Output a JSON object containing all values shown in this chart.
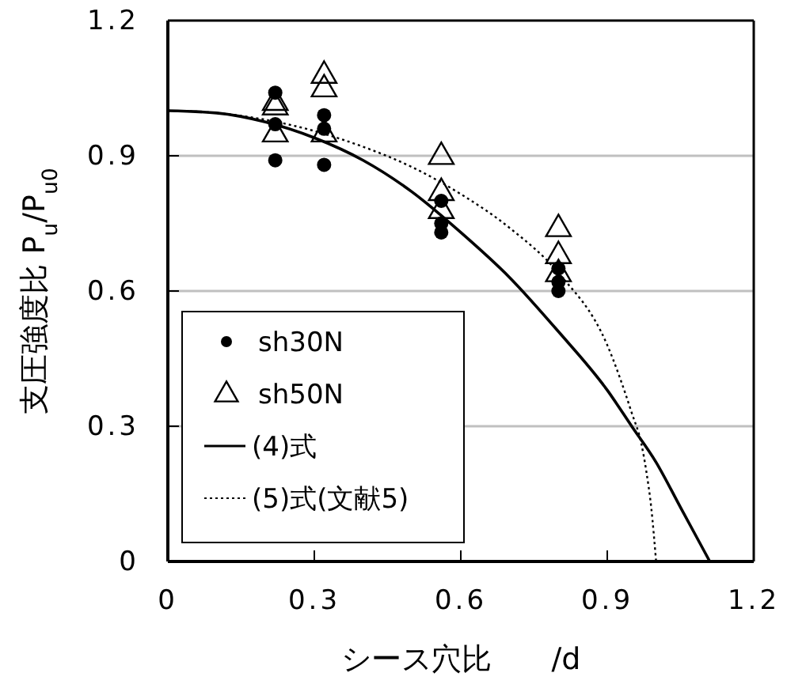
{
  "chart_data": {
    "type": "scatter",
    "xlabel": "シース穴比　　/d",
    "ylabel": "支圧強度比 P$_{u}$/P$_{u0}$",
    "xlim": [
      0,
      1.2
    ],
    "xticks": [
      0,
      0.3,
      0.6,
      0.9,
      1.2
    ],
    "ylim": [
      0,
      1.2
    ],
    "yticks": [
      0,
      0.3,
      0.6,
      0.9,
      1.2
    ],
    "grid": "y",
    "legend": "bottom left",
    "series": [
      {
        "name": "sh30N",
        "marker": "circle",
        "color": "#000000",
        "x": [
          0.22,
          0.22,
          0.22,
          0.32,
          0.32,
          0.32,
          0.56,
          0.56,
          0.56,
          0.8,
          0.8,
          0.8
        ],
        "values": [
          1.04,
          0.97,
          0.89,
          0.99,
          0.96,
          0.88,
          0.8,
          0.75,
          0.73,
          0.65,
          0.62,
          0.6
        ]
      },
      {
        "name": "sh50N",
        "marker": "triangle",
        "color": "#000000",
        "x": [
          0.22,
          0.22,
          0.22,
          0.32,
          0.32,
          0.32,
          0.56,
          0.56,
          0.56,
          0.8,
          0.8,
          0.8
        ],
        "values": [
          1.02,
          1.01,
          0.95,
          1.08,
          1.05,
          0.95,
          0.9,
          0.82,
          0.78,
          0.74,
          0.68,
          0.64
        ]
      },
      {
        "name": "(4)式",
        "type": "line",
        "line_style": "solid",
        "marker": "none",
        "color": "#000000",
        "x": [
          0,
          0.1,
          0.2,
          0.3,
          0.4,
          0.5,
          0.6,
          0.7,
          0.8,
          0.9,
          0.95,
          1.0,
          1.05,
          1.11
        ],
        "values": [
          1.0,
          0.995,
          0.975,
          0.94,
          0.89,
          0.82,
          0.73,
          0.63,
          0.51,
          0.38,
          0.3,
          0.22,
          0.12,
          0
        ]
      },
      {
        "name": "(5)式(文献5)",
        "type": "line",
        "line_style": "dotted",
        "marker": "none",
        "color": "#000000",
        "x": [
          0,
          0.1,
          0.2,
          0.3,
          0.4,
          0.5,
          0.6,
          0.7,
          0.8,
          0.9,
          0.95,
          0.97,
          0.98,
          0.99,
          1.0
        ],
        "values": [
          1.0,
          0.995,
          0.98,
          0.955,
          0.92,
          0.875,
          0.815,
          0.74,
          0.64,
          0.48,
          0.33,
          0.26,
          0.2,
          0.12,
          0
        ]
      }
    ]
  }
}
